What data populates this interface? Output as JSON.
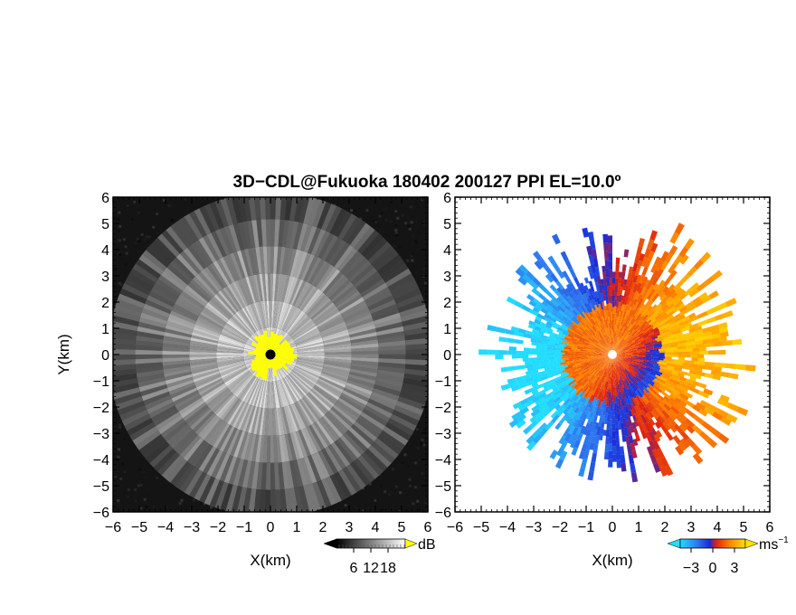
{
  "chart_data": {
    "title": "3D−CDL@Fukuoka 180402 200127 PPI EL=10.0º",
    "panels": [
      {
        "type": "heatmap",
        "field": "intensity",
        "xlabel": "X(km)",
        "ylabel": "Y(km)",
        "xlim": [
          -6,
          6
        ],
        "ylim": [
          -6,
          6
        ],
        "xticks": [
          -6,
          -5,
          -4,
          -3,
          -2,
          -1,
          0,
          1,
          2,
          3,
          4,
          5,
          6
        ],
        "yticks": [
          -6,
          -5,
          -4,
          -3,
          -2,
          -1,
          0,
          1,
          2,
          3,
          4,
          5,
          6
        ],
        "xtick_labels": [
          "−6",
          "−5",
          "−4",
          "−3",
          "−2",
          "−1",
          "0",
          "1",
          "2",
          "3",
          "4",
          "5",
          "6"
        ],
        "ytick_labels": [
          "−6",
          "−5",
          "−4",
          "−3",
          "−2",
          "−1",
          "0",
          "1",
          "2",
          "3",
          "4",
          "5",
          "6"
        ],
        "colorbar": {
          "unit": "dB",
          "range": [
            0,
            24
          ],
          "ticks": [
            6,
            12,
            18
          ],
          "tick_labels": [
            "6",
            "12",
            "18"
          ],
          "colormap": "black-to-white, yellow above range"
        },
        "features": {
          "data_radius_km": 6.2,
          "saturated_center_radius_km": 0.9,
          "saturated_color": "#ffff00",
          "center_dot_color": "#000000"
        }
      },
      {
        "type": "heatmap",
        "field": "radial_velocity",
        "xlabel": "X(km)",
        "xlim": [
          -6,
          6
        ],
        "ylim": [
          -6,
          6
        ],
        "xticks": [
          -6,
          -5,
          -4,
          -3,
          -2,
          -1,
          0,
          1,
          2,
          3,
          4,
          5,
          6
        ],
        "yticks": [
          -6,
          -5,
          -4,
          -3,
          -2,
          -1,
          0,
          1,
          2,
          3,
          4,
          5,
          6
        ],
        "xtick_labels": [
          "−6",
          "−5",
          "−4",
          "−3",
          "−2",
          "−1",
          "0",
          "1",
          "2",
          "3",
          "4",
          "5",
          "6"
        ],
        "ytick_labels": [
          "−6",
          "−5",
          "−4",
          "−3",
          "−2",
          "−1",
          "0",
          "1",
          "2",
          "3",
          "4",
          "5",
          "6"
        ],
        "colorbar": {
          "unit": "ms",
          "unit_superscript": "−1",
          "range": [
            -4.5,
            4.5
          ],
          "ticks": [
            -3,
            0,
            3
          ],
          "tick_labels": [
            "−3",
            "0",
            "3"
          ],
          "colormap": "cyan-blue-red-orange-yellow"
        },
        "features": {
          "data_radius_km": 5.4,
          "inner_ring_radius_km": 1.9,
          "center_marker_color": "#ffffff"
        }
      }
    ]
  }
}
